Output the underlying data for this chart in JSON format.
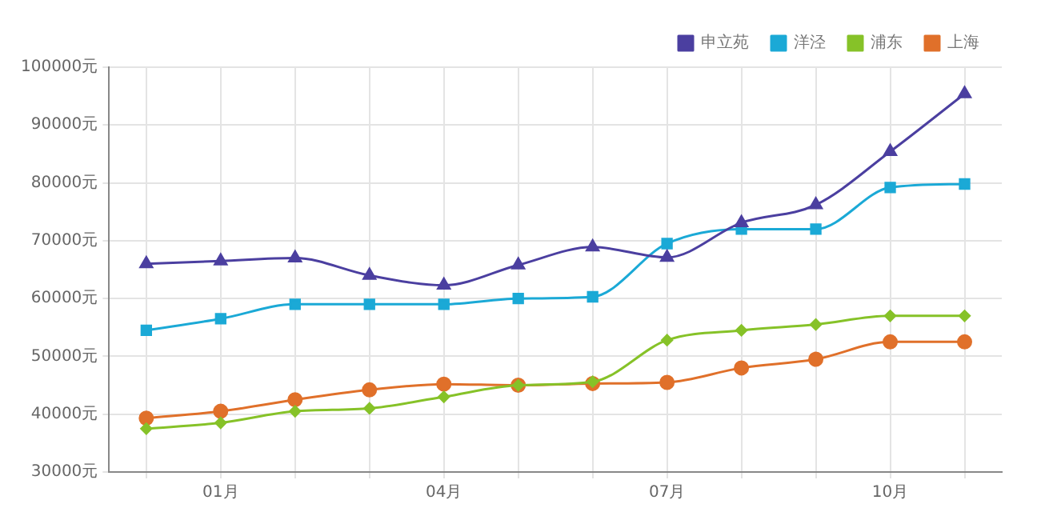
{
  "chart_data": {
    "type": "line",
    "categories": [
      null,
      "01月",
      null,
      null,
      "04月",
      null,
      null,
      "07月",
      null,
      null,
      "10月",
      null
    ],
    "series": [
      {
        "name": "申立苑",
        "color": "#4b3fa0",
        "marker": "triangle",
        "values": [
          66000,
          66500,
          67000,
          64000,
          62300,
          65800,
          68900,
          67100,
          73100,
          76200,
          85400,
          95400
        ]
      },
      {
        "name": "洋泾",
        "color": "#1ba9d6",
        "marker": "square",
        "values": [
          54500,
          56500,
          59000,
          59000,
          59000,
          60000,
          60300,
          69500,
          72000,
          72000,
          79200,
          79800
        ]
      },
      {
        "name": "浦东",
        "color": "#86c228",
        "marker": "diamond",
        "values": [
          37500,
          38500,
          40500,
          41000,
          43000,
          45000,
          45600,
          52800,
          54500,
          55500,
          57000,
          57000
        ]
      },
      {
        "name": "上海",
        "color": "#e0702a",
        "marker": "circle",
        "values": [
          39300,
          40500,
          42500,
          44200,
          45200,
          45000,
          45300,
          45500,
          48000,
          49500,
          52500,
          52500
        ]
      }
    ],
    "ylim": [
      30000,
      100000
    ],
    "yticks": [
      {
        "value": 30000,
        "label": "30000元"
      },
      {
        "value": 40000,
        "label": "40000元"
      },
      {
        "value": 50000,
        "label": "50000元"
      },
      {
        "value": 60000,
        "label": "60000元"
      },
      {
        "value": 70000,
        "label": "70000元"
      },
      {
        "value": 80000,
        "label": "80000元"
      },
      {
        "value": 90000,
        "label": "90000元"
      },
      {
        "value": 100000,
        "label": "100000元"
      }
    ],
    "grid": true,
    "legend": "top right"
  }
}
